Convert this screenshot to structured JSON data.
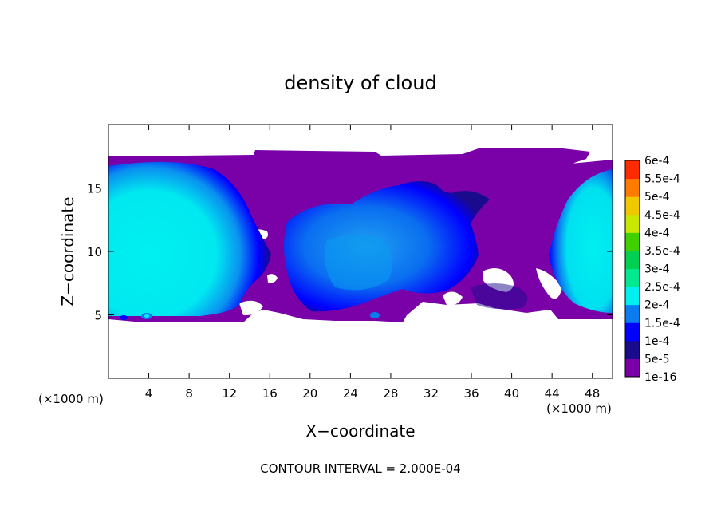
{
  "chart_data": {
    "type": "heatmap",
    "title": "density of cloud",
    "xlabel": "X−coordinate",
    "ylabel": "Z−coordinate",
    "x_unit": "(×1000 m)",
    "z_unit": "(×1000 m)",
    "xlim": [
      0,
      50
    ],
    "ylim": [
      0,
      20
    ],
    "x_ticks": [
      "4",
      "8",
      "12",
      "16",
      "20",
      "24",
      "28",
      "32",
      "36",
      "40",
      "44",
      "48"
    ],
    "x_tick_values": [
      4,
      8,
      12,
      16,
      20,
      24,
      28,
      32,
      36,
      40,
      44,
      48
    ],
    "y_ticks": [
      "5",
      "10",
      "15"
    ],
    "y_tick_values": [
      5,
      10,
      15
    ],
    "colorbar": {
      "labels": [
        "1e-16",
        "5e-5",
        "1e-4",
        "1.5e-4",
        "2e-4",
        "2.5e-4",
        "3e-4",
        "3.5e-4",
        "4e-4",
        "4.5e-4",
        "5e-4",
        "5.5e-4",
        "6e-4"
      ],
      "colors": [
        "#7a00a8",
        "#1a0a8c",
        "#0000ff",
        "#0a7cf0",
        "#00f0f0",
        "#00e890",
        "#00d050",
        "#40d000",
        "#c8e800",
        "#f0c800",
        "#ff7a00",
        "#ff2a00",
        "#ff7a7a"
      ]
    },
    "contour_interval": "CONTOUR INTERVAL = 2.000E-04"
  }
}
